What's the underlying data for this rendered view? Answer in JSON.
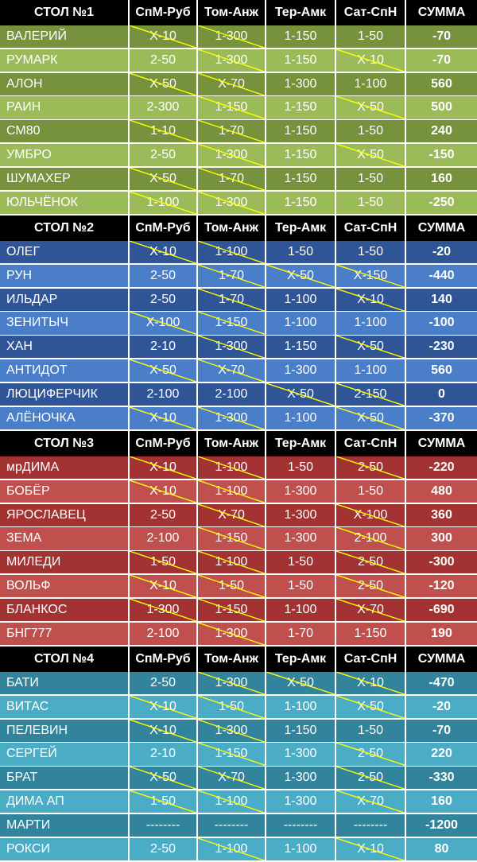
{
  "colors": {
    "header_bg": "#000000",
    "header_text": "#ffffff",
    "text": "#ffffff",
    "strike": "#ffff00",
    "tables": [
      {
        "dark": "#76923c",
        "light": "#9bbb59"
      },
      {
        "dark": "#2f5597",
        "light": "#4a7ec8"
      },
      {
        "dark": "#a33333",
        "light": "#c0504d"
      },
      {
        "dark": "#31849b",
        "light": "#4bacc6"
      }
    ]
  },
  "tables": [
    {
      "header": [
        "СТОЛ №1",
        "СпМ-Руб",
        "Том-Анж",
        "Тер-Амк",
        "Сат-СпН",
        "СУММА"
      ],
      "rows": [
        {
          "name": "ВАЛЕРИЙ",
          "bets": [
            "Х-10",
            "1-300",
            "1-150",
            "1-50"
          ],
          "crossed": [
            true,
            true,
            false,
            false
          ],
          "sum": "-70"
        },
        {
          "name": "РУМАРК",
          "bets": [
            "2-50",
            "1-300",
            "1-150",
            "Х-10"
          ],
          "crossed": [
            false,
            true,
            false,
            true
          ],
          "sum": "-70"
        },
        {
          "name": "АЛОН",
          "bets": [
            "Х-50",
            "Х-70",
            "1-300",
            "1-100"
          ],
          "crossed": [
            true,
            true,
            false,
            false
          ],
          "sum": "560"
        },
        {
          "name": "РАИН",
          "bets": [
            "2-300",
            "1-150",
            "1-150",
            "Х-50"
          ],
          "crossed": [
            false,
            true,
            false,
            true
          ],
          "sum": "500"
        },
        {
          "name": "СМ80",
          "bets": [
            "1-10",
            "1-70",
            "1-150",
            "1-50"
          ],
          "crossed": [
            true,
            true,
            false,
            false
          ],
          "sum": "240"
        },
        {
          "name": "УМБРО",
          "bets": [
            "2-50",
            "1-300",
            "1-150",
            "Х-50"
          ],
          "crossed": [
            false,
            true,
            false,
            true
          ],
          "sum": "-150"
        },
        {
          "name": "ШУМАХЕР",
          "bets": [
            "Х-50",
            "1-70",
            "1-150",
            "1-50"
          ],
          "crossed": [
            true,
            true,
            false,
            false
          ],
          "sum": "160"
        },
        {
          "name": "ЮЛЬЧЁНОК",
          "bets": [
            "1-100",
            "1-300",
            "1-150",
            "1-50"
          ],
          "crossed": [
            true,
            true,
            false,
            false
          ],
          "sum": "-250"
        }
      ]
    },
    {
      "header": [
        "СТОЛ №2",
        "СпМ-Руб",
        "Том-Анж",
        "Тер-Амк",
        "Сат-СпН",
        "СУММА"
      ],
      "rows": [
        {
          "name": "ОЛЕГ",
          "bets": [
            "Х-10",
            "1-100",
            "1-50",
            "1-50"
          ],
          "crossed": [
            true,
            true,
            false,
            false
          ],
          "sum": "-20"
        },
        {
          "name": "РУН",
          "bets": [
            "2-50",
            "1-70",
            "Х-50",
            "Х-150"
          ],
          "crossed": [
            false,
            true,
            true,
            true
          ],
          "sum": "-440"
        },
        {
          "name": "ИЛЬДАР",
          "bets": [
            "2-50",
            "1-70",
            "1-100",
            "Х-10"
          ],
          "crossed": [
            false,
            true,
            false,
            true
          ],
          "sum": "140"
        },
        {
          "name": "ЗЕНИТЫЧ",
          "bets": [
            "Х-100",
            "1-150",
            "1-100",
            "1-100"
          ],
          "crossed": [
            true,
            true,
            false,
            false
          ],
          "sum": "-100"
        },
        {
          "name": "ХАН",
          "bets": [
            "2-10",
            "1-300",
            "1-150",
            "Х-50"
          ],
          "crossed": [
            false,
            true,
            false,
            true
          ],
          "sum": "-230"
        },
        {
          "name": "АНТИДОТ",
          "bets": [
            "Х-50",
            "Х-70",
            "1-300",
            "1-100"
          ],
          "crossed": [
            true,
            true,
            false,
            false
          ],
          "sum": "560"
        },
        {
          "name": "ЛЮЦИФЕРЧИК",
          "bets": [
            "2-100",
            "2-100",
            "Х-50",
            "2-150"
          ],
          "crossed": [
            false,
            false,
            true,
            true
          ],
          "sum": "0"
        },
        {
          "name": "АЛЁНОЧКА",
          "bets": [
            "Х-10",
            "1-300",
            "1-100",
            "Х-50"
          ],
          "crossed": [
            true,
            true,
            false,
            true
          ],
          "sum": "-370"
        }
      ]
    },
    {
      "header": [
        "СТОЛ №3",
        "СпМ-Руб",
        "Том-Анж",
        "Тер-Амк",
        "Сат-СпН",
        "СУММА"
      ],
      "rows": [
        {
          "name": "мрДИМА",
          "bets": [
            "Х-10",
            "1-100",
            "1-50",
            "2-50"
          ],
          "crossed": [
            true,
            true,
            false,
            true
          ],
          "sum": "-220"
        },
        {
          "name": "БОБЁР",
          "bets": [
            "Х-10",
            "1-100",
            "1-300",
            "1-50"
          ],
          "crossed": [
            true,
            true,
            false,
            false
          ],
          "sum": "480"
        },
        {
          "name": "ЯРОСЛАВЕЦ",
          "bets": [
            "2-50",
            "Х-70",
            "1-300",
            "Х-100"
          ],
          "crossed": [
            false,
            true,
            false,
            true
          ],
          "sum": "360"
        },
        {
          "name": "ЗЕМА",
          "bets": [
            "2-100",
            "1-150",
            "1-300",
            "2-100"
          ],
          "crossed": [
            false,
            true,
            false,
            true
          ],
          "sum": "300"
        },
        {
          "name": "МИЛЕДИ",
          "bets": [
            "1-50",
            "1-100",
            "1-50",
            "2-50"
          ],
          "crossed": [
            true,
            true,
            false,
            true
          ],
          "sum": "-300"
        },
        {
          "name": "ВОЛЬФ",
          "bets": [
            "Х-10",
            "1-50",
            "1-50",
            "2-50"
          ],
          "crossed": [
            true,
            true,
            false,
            true
          ],
          "sum": "-120"
        },
        {
          "name": "БЛАНКОС",
          "bets": [
            "1-300",
            "1-150",
            "1-100",
            "Х-70"
          ],
          "crossed": [
            true,
            true,
            false,
            true
          ],
          "sum": "-690"
        },
        {
          "name": "БНГ777",
          "bets": [
            "2-100",
            "1-300",
            "1-70",
            "1-150"
          ],
          "crossed": [
            false,
            true,
            false,
            false
          ],
          "sum": "190"
        }
      ]
    },
    {
      "header": [
        "СТОЛ №4",
        "СпМ-Руб",
        "Том-Анж",
        "Тер-Амк",
        "Сат-СпН",
        "СУММА"
      ],
      "rows": [
        {
          "name": "БАТИ",
          "bets": [
            "2-50",
            "1-300",
            "Х-50",
            "Х-10"
          ],
          "crossed": [
            false,
            true,
            true,
            true
          ],
          "sum": "-470"
        },
        {
          "name": "ВИТАС",
          "bets": [
            "Х-10",
            "1-50",
            "1-100",
            "Х-50"
          ],
          "crossed": [
            true,
            true,
            false,
            true
          ],
          "sum": "-20"
        },
        {
          "name": "ПЕЛЕВИН",
          "bets": [
            "Х-10",
            "1-300",
            "1-150",
            "1-50"
          ],
          "crossed": [
            true,
            true,
            false,
            false
          ],
          "sum": "-70"
        },
        {
          "name": "СЕРГЕЙ",
          "bets": [
            "2-10",
            "1-150",
            "1-300",
            "2-50"
          ],
          "crossed": [
            false,
            true,
            false,
            true
          ],
          "sum": "220"
        },
        {
          "name": "БРАТ",
          "bets": [
            "Х-50",
            "Х-70",
            "1-300",
            "2-50"
          ],
          "crossed": [
            true,
            true,
            false,
            true
          ],
          "sum": "-330"
        },
        {
          "name": "ДИМА АП",
          "bets": [
            "1-50",
            "1-100",
            "1-300",
            "Х-70"
          ],
          "crossed": [
            true,
            true,
            false,
            true
          ],
          "sum": "160"
        },
        {
          "name": "МАРТИ",
          "bets": [
            "--------",
            "--------",
            "--------",
            "--------"
          ],
          "crossed": [
            false,
            false,
            false,
            false
          ],
          "sum": "-1200"
        },
        {
          "name": "РОКСИ",
          "bets": [
            "2-50",
            "1-100",
            "1-100",
            "Х-10"
          ],
          "crossed": [
            false,
            true,
            false,
            true
          ],
          "sum": "80"
        }
      ]
    }
  ]
}
